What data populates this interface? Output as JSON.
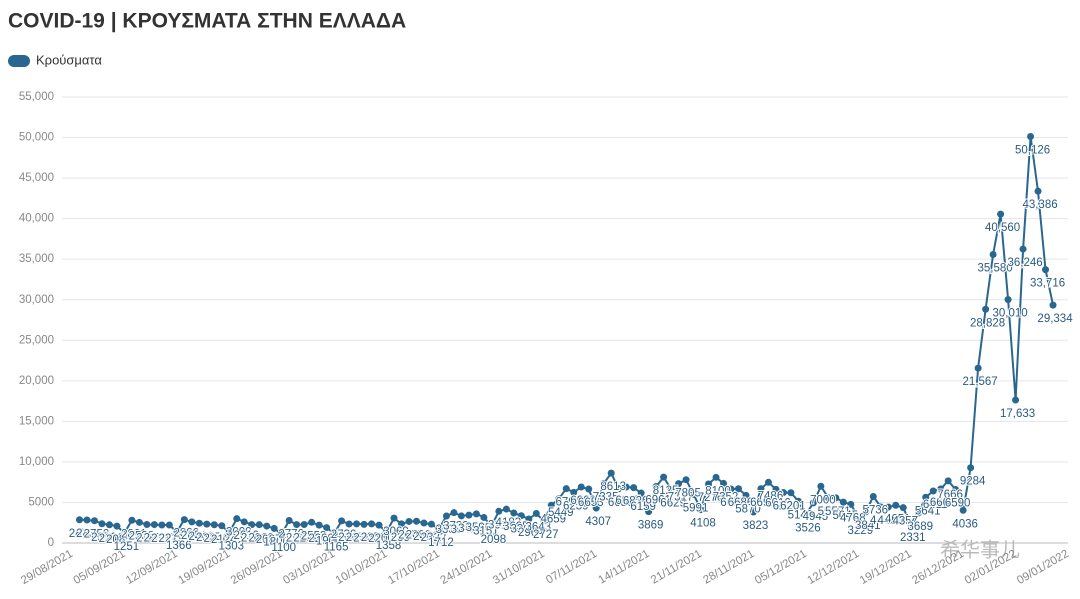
{
  "chart_data": {
    "type": "line",
    "title": "COVID-19 | ΚΡΟΥΣΜΑΤΑ ΣΤΗΝ ΕΛΛΑΔΑ",
    "watermark": "希华事儿",
    "categories": [
      "29/08/2021",
      null,
      null,
      null,
      null,
      null,
      null,
      "05/09/2021",
      null,
      null,
      null,
      null,
      null,
      null,
      "12/09/2021",
      null,
      null,
      null,
      null,
      null,
      null,
      "19/09/2021",
      null,
      null,
      null,
      null,
      null,
      null,
      "26/09/2021",
      null,
      null,
      null,
      null,
      null,
      null,
      "03/10/2021",
      null,
      null,
      null,
      null,
      null,
      null,
      "10/10/2021",
      null,
      null,
      null,
      null,
      null,
      null,
      "17/10/2021",
      null,
      null,
      null,
      null,
      null,
      null,
      "24/10/2021",
      null,
      null,
      null,
      null,
      null,
      null,
      "31/10/2021",
      null,
      null,
      null,
      null,
      null,
      null,
      "07/11/2021",
      null,
      null,
      null,
      null,
      null,
      null,
      "14/11/2021",
      null,
      null,
      null,
      null,
      null,
      null,
      "21/11/2021",
      null,
      null,
      null,
      null,
      null,
      null,
      "28/11/2021",
      null,
      null,
      null,
      null,
      null,
      null,
      "05/12/2021",
      null,
      null,
      null,
      null,
      null,
      null,
      "12/12/2021",
      null,
      null,
      null,
      null,
      null,
      null,
      "19/12/2021",
      null,
      null,
      null,
      null,
      null,
      null,
      "26/12/2021",
      null,
      null,
      null,
      null,
      null,
      null,
      "02/01/2022",
      null,
      null,
      null,
      null,
      null,
      null,
      "09/01/2022"
    ],
    "series": [
      {
        "name": "Κρούσματα",
        "color": "#2a6790",
        "values": [
          null,
          2871,
          2836,
          2750,
          2370,
          2245,
          2085,
          1251,
          2801,
          2538,
          2285,
          2271,
          2217,
          2219,
          1366,
          2880,
          2604,
          2441,
          2327,
          2246,
          2124,
          1303,
          3000,
          2610,
          2262,
          2260,
          2087,
          1800,
          1100,
          2776,
          2271,
          2286,
          2553,
          2200,
          1900,
          1165,
          2730,
          2345,
          2356,
          2300,
          2358,
          2200,
          1358,
          3069,
          2354,
          2657,
          2680,
          2460,
          2322,
          1712,
          3331,
          3739,
          3340,
          3436,
          3596,
          3151,
          2098,
          3910,
          4183,
          3695,
          3367,
          2964,
          3643,
          2727,
          4659,
          5449,
          6700,
          6239,
          6909,
          6653,
          4307,
          7335,
          8613,
          6686,
          6905,
          6826,
          6159,
          3869,
          6961,
          8125,
          6629,
          7317,
          7805,
          5991,
          4108,
          7276,
          8100,
          7352,
          6657,
          6686,
          5870,
          3823,
          6693,
          7486,
          6616,
          6220,
          6201,
          5149,
          3526,
          4945,
          7000,
          5558,
          5571,
          5045,
          4768,
          3229,
          3841,
          5736,
          4441,
          4431,
          4651,
          4357,
          2331,
          3689,
          5641,
          6411,
          6662,
          7666,
          6590,
          4036,
          9284,
          21567,
          28828,
          35580,
          40560,
          30010,
          17633,
          36246,
          50126,
          43386,
          33716,
          29334,
          null,
          null
        ],
        "value_labels": [
          null,
          "2871",
          "2836",
          "2750",
          "2370",
          "2245",
          "2085",
          "1251",
          "2801",
          "2538",
          "2285",
          "2271",
          "2217",
          "2219",
          "1366",
          "2880",
          "2604",
          "2441",
          "2327",
          "2246",
          "2124",
          "1303",
          "3000",
          "2610",
          "2262",
          "2260",
          "2087",
          "1800",
          "1100",
          "2776",
          "2271",
          "2286",
          "2553",
          "2200",
          "1900",
          "1165",
          "2730",
          "2345",
          "2356",
          "2300",
          "2358",
          "2200",
          "1358",
          "3069",
          "2354",
          "2657",
          "2680",
          "2460",
          "2322",
          "1712",
          "3331",
          "3739",
          "3340",
          "3436",
          "3596",
          "3151",
          "2098",
          "3910",
          "4183",
          "3695",
          "3367",
          "2964",
          "3643",
          "2727",
          "4659",
          "5449",
          "6700",
          "6239",
          "6909",
          "6653",
          "4307",
          "7335",
          "8613",
          "6686",
          "6905",
          "6826",
          "6159",
          "3869",
          "6961",
          "8125",
          "6629",
          "7317",
          "7805",
          "5991",
          "4108",
          "7276",
          "8100",
          "7352",
          "6657",
          "6686",
          "5870",
          "3823",
          "6693",
          "7486",
          "6616",
          "6220",
          "6201",
          "5149",
          "3526",
          "4945",
          "7000",
          "5558",
          "5571",
          "5045",
          "4768",
          "3229",
          "3841",
          "5736",
          "4441",
          "4431",
          "4651",
          "4357",
          "2331",
          "3689",
          "5641",
          "6411",
          "6662",
          "7666",
          "6590",
          "4036",
          "9284",
          "21,567",
          "28,828",
          "35,580",
          "40,560",
          "30,010",
          "17,633",
          "36,246",
          "50,126",
          "43,386",
          "33,716",
          "29,334",
          null,
          null
        ]
      }
    ],
    "ylim": [
      0,
      55000
    ],
    "yticks": [
      0,
      5000,
      {
        "value": 10000,
        "label": "10,000"
      },
      {
        "value": 15000,
        "label": "15,000"
      },
      {
        "value": 20000,
        "label": "20,000"
      },
      {
        "value": 25000,
        "label": "25,000"
      },
      {
        "value": 30000,
        "label": "30,000"
      },
      {
        "value": 35000,
        "label": "35,000"
      },
      {
        "value": 40000,
        "label": "40,000"
      },
      {
        "value": 45000,
        "label": "45,000"
      },
      {
        "value": 50000,
        "label": "50,000"
      },
      {
        "value": 55000,
        "label": "55,000"
      }
    ],
    "grid": true,
    "legend": "top-left"
  }
}
